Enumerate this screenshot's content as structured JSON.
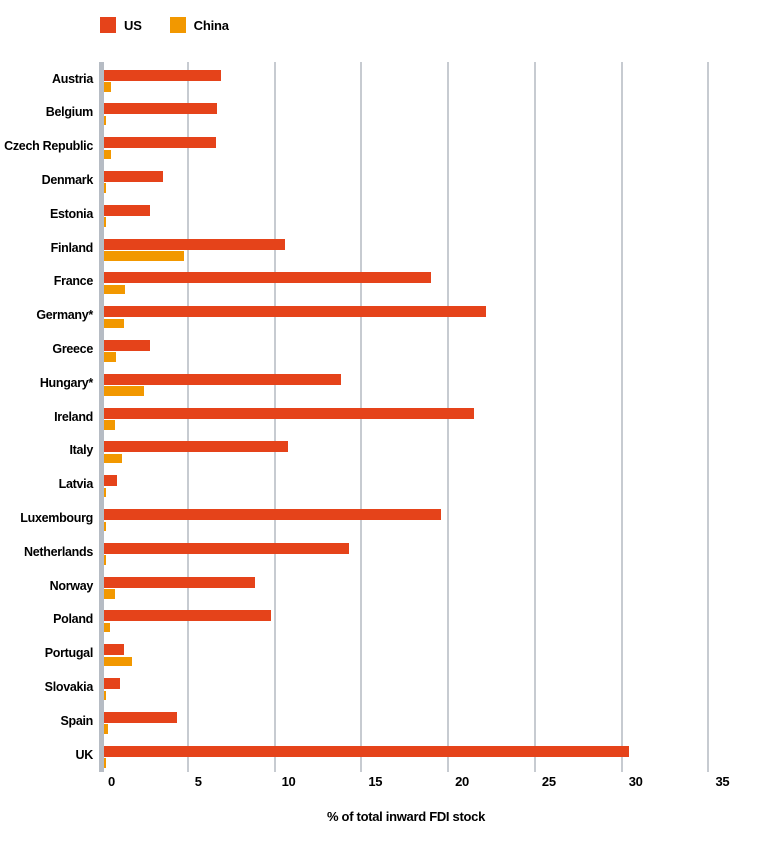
{
  "chart_data": {
    "type": "bar",
    "orientation": "horizontal",
    "title": "",
    "xlabel": "% of total inward FDI stock",
    "ylabel": "",
    "xlim": [
      0,
      35
    ],
    "grid": true,
    "legend_position": "top",
    "categories": [
      "Austria",
      "Belgium",
      "Czech Republic",
      "Denmark",
      "Estonia",
      "Finland",
      "France",
      "Germany*",
      "Greece",
      "Hungary*",
      "Ireland",
      "Italy",
      "Latvia",
      "Luxembourg",
      "Netherlands",
      "Norway",
      "Poland",
      "Portugal",
      "Slovakia",
      "Spain",
      "UK"
    ],
    "series": [
      {
        "name": "US",
        "color": "#e5431a",
        "values": [
          6.9,
          6.7,
          6.6,
          3.6,
          2.8,
          10.6,
          19.0,
          22.2,
          2.8,
          13.8,
          21.5,
          10.8,
          0.9,
          19.6,
          14.3,
          8.9,
          9.8,
          1.3,
          1.1,
          4.4,
          30.4
        ]
      },
      {
        "name": "China",
        "color": "#f29800",
        "values": [
          0.6,
          0.15,
          0.6,
          0.15,
          0.2,
          4.8,
          1.4,
          1.3,
          0.85,
          2.5,
          0.8,
          1.2,
          0.15,
          0.3,
          0.3,
          0.8,
          0.5,
          1.8,
          0.1,
          0.4,
          0.2
        ]
      }
    ],
    "x_ticks": [
      "0",
      "5",
      "10",
      "15",
      "20",
      "25",
      "30",
      "35"
    ]
  },
  "legend": {
    "us_label": "US",
    "china_label": "China"
  },
  "colors": {
    "us_bar": "#e5431a",
    "china_bar": "#f29800",
    "gridline": "#c7cbd1",
    "axis_line": "#b6bcc4",
    "text": "#000000",
    "background": "#ffffff"
  }
}
